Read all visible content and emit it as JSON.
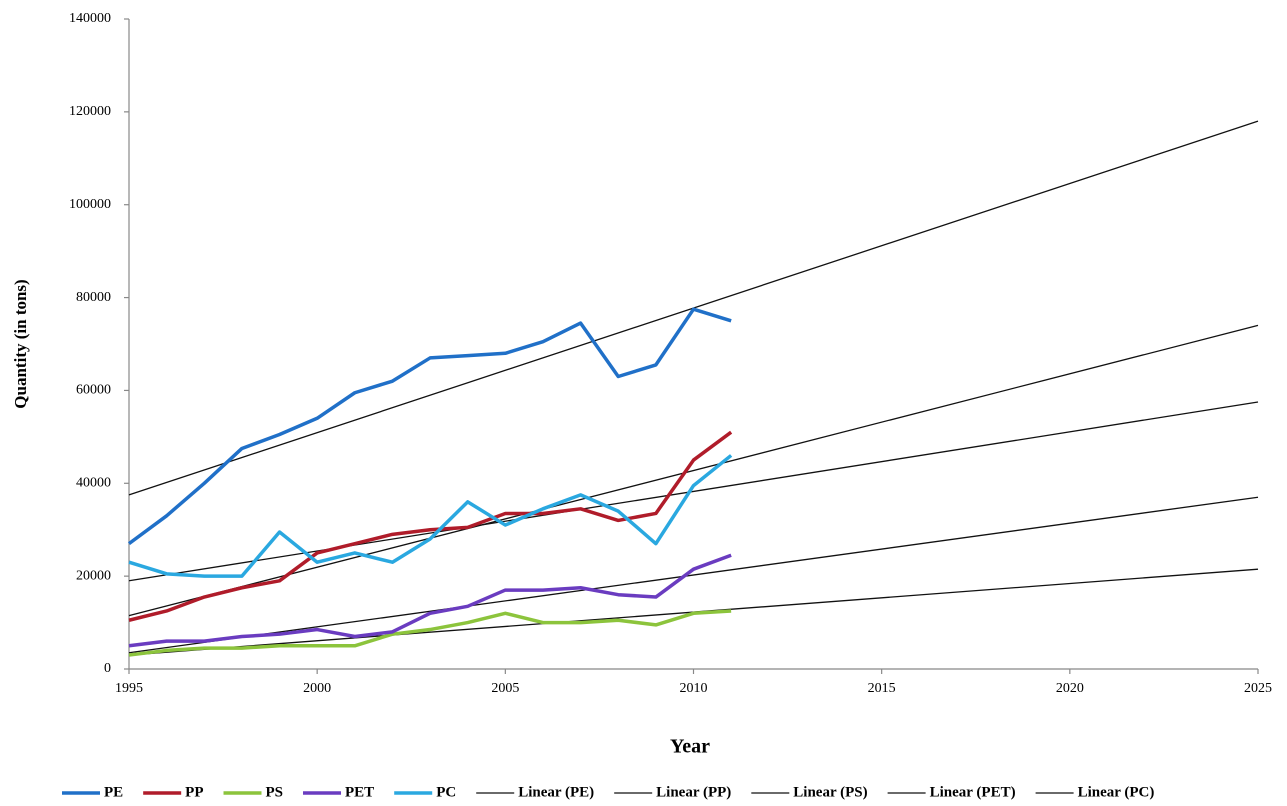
{
  "chart_data": {
    "type": "line",
    "x_label": "Year",
    "y_label": "Quantity (in tons)",
    "x": [
      1995,
      1996,
      1997,
      1998,
      1999,
      2000,
      2001,
      2002,
      2003,
      2004,
      2005,
      2006,
      2007,
      2008,
      2009,
      2010,
      2011
    ],
    "xlim": [
      1995,
      2025
    ],
    "xticks": [
      1995,
      2000,
      2005,
      2010,
      2015,
      2020,
      2025
    ],
    "ylim": [
      0,
      140000
    ],
    "yticks": [
      0,
      20000,
      40000,
      60000,
      80000,
      100000,
      120000,
      140000
    ],
    "series": [
      {
        "name": "PE",
        "color": "#2070c8",
        "linewidth": 3.5,
        "values": [
          27000,
          33000,
          40000,
          47500,
          50500,
          54000,
          59500,
          62000,
          67000,
          67500,
          68000,
          70500,
          74500,
          63000,
          65500,
          77500,
          75000
        ]
      },
      {
        "name": "PP",
        "color": "#b01c2a",
        "linewidth": 3.5,
        "values": [
          10500,
          12500,
          15500,
          17500,
          19000,
          25000,
          27000,
          29000,
          30000,
          30500,
          33500,
          33500,
          34500,
          32000,
          33500,
          45000,
          51000
        ]
      },
      {
        "name": "PS",
        "color": "#8cc43c",
        "linewidth": 3.5,
        "values": [
          3000,
          4000,
          4500,
          4500,
          5000,
          5000,
          5000,
          7500,
          8500,
          10000,
          12000,
          10000,
          10000,
          10500,
          9500,
          12000,
          12500
        ]
      },
      {
        "name": "PET",
        "color": "#6a3cc0",
        "linewidth": 3.5,
        "values": [
          5000,
          6000,
          6000,
          7000,
          7500,
          8500,
          7000,
          8000,
          12000,
          13500,
          17000,
          17000,
          17500,
          16000,
          15500,
          21500,
          24500
        ]
      },
      {
        "name": "PC",
        "color": "#2aa8e0",
        "linewidth": 3.5,
        "values": [
          23000,
          20500,
          20000,
          20000,
          29500,
          23000,
          25000,
          23000,
          28000,
          36000,
          31000,
          34500,
          37500,
          34000,
          27000,
          39500,
          46000
        ]
      },
      {
        "name": "Linear (PE)",
        "color": "#111111",
        "linewidth": 1.3,
        "x": [
          1995,
          2025
        ],
        "values": [
          37500,
          118000
        ]
      },
      {
        "name": "Linear (PP)",
        "color": "#111111",
        "linewidth": 1.3,
        "x": [
          1995,
          2025
        ],
        "values": [
          11500,
          74000
        ]
      },
      {
        "name": "Linear (PS)",
        "color": "#111111",
        "linewidth": 1.3,
        "x": [
          1995,
          2025
        ],
        "values": [
          3000,
          21500
        ]
      },
      {
        "name": "Linear (PET)",
        "color": "#111111",
        "linewidth": 1.3,
        "x": [
          1995,
          2025
        ],
        "values": [
          3500,
          37000
        ]
      },
      {
        "name": "Linear (PC)",
        "color": "#111111",
        "linewidth": 1.3,
        "x": [
          1995,
          2025
        ],
        "values": [
          19000,
          57500
        ]
      }
    ]
  }
}
